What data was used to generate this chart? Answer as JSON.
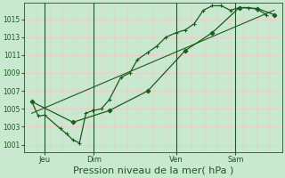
{
  "bg_color": "#c8e8d0",
  "plot_bg_color": "#c8e8d0",
  "grid_color_major": "#f0d8d8",
  "grid_color_minor": "#e8e8f8",
  "line_color": "#1a5c1a",
  "xlabel": "Pression niveau de la mer( hPa )",
  "xlabel_fontsize": 8,
  "yticks": [
    1001,
    1003,
    1005,
    1007,
    1009,
    1011,
    1013,
    1015
  ],
  "ylim": [
    1000.2,
    1016.8
  ],
  "xtick_labels": [
    "Jeu",
    "Dim",
    "Ven",
    "Sam"
  ],
  "xtick_positions": [
    0.08,
    0.27,
    0.59,
    0.82
  ],
  "xlim": [
    0.0,
    1.0
  ],
  "vline_positions": [
    0.08,
    0.27,
    0.59,
    0.82
  ],
  "series1_x": [
    0.03,
    0.055,
    0.08,
    0.14,
    0.165,
    0.19,
    0.215,
    0.24,
    0.265,
    0.3,
    0.33,
    0.375,
    0.41,
    0.44,
    0.48,
    0.515,
    0.55,
    0.59,
    0.625,
    0.66,
    0.695,
    0.73,
    0.765,
    0.8,
    0.835,
    0.87,
    0.905,
    0.94
  ],
  "series1_y": [
    1005.8,
    1004.2,
    1004.3,
    1002.8,
    1002.2,
    1001.5,
    1001.2,
    1004.5,
    1004.8,
    1005.0,
    1006.0,
    1008.5,
    1009.0,
    1010.5,
    1011.3,
    1012.0,
    1013.0,
    1013.5,
    1013.8,
    1014.5,
    1016.0,
    1016.5,
    1016.5,
    1016.0,
    1016.3,
    1016.3,
    1016.1,
    1015.5
  ],
  "series2_x": [
    0.03,
    0.19,
    0.33,
    0.48,
    0.625,
    0.73,
    0.835,
    0.905,
    0.97
  ],
  "series2_y": [
    1005.8,
    1003.5,
    1004.8,
    1007.0,
    1011.5,
    1013.5,
    1016.3,
    1016.2,
    1015.5
  ],
  "series3_x": [
    0.03,
    0.97
  ],
  "series3_y": [
    1004.5,
    1016.0
  ]
}
